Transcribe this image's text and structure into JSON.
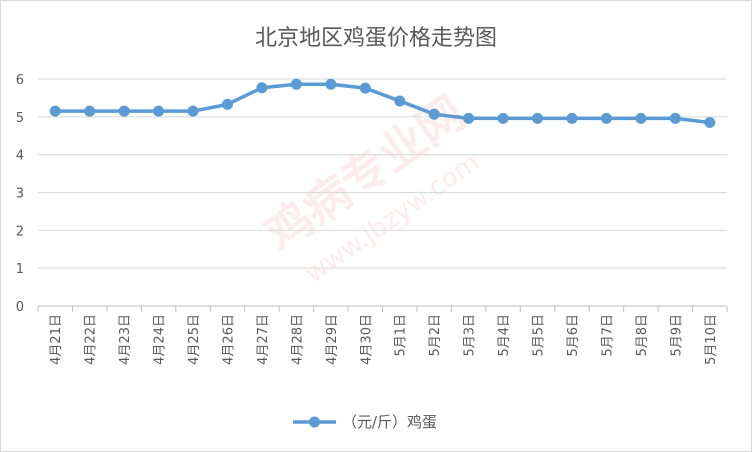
{
  "chart_data": {
    "type": "line",
    "title": "北京地区鸡蛋价格走势图",
    "categories": [
      "4月21日",
      "4月22日",
      "4月23日",
      "4月24日",
      "4月25日",
      "4月26日",
      "4月27日",
      "4月28日",
      "4月29日",
      "4月30日",
      "5月1日",
      "5月2日",
      "5月3日",
      "5月4日",
      "5月5日",
      "5月6日",
      "5月7日",
      "5月8日",
      "5月9日",
      "5月10日"
    ],
    "series": [
      {
        "name": "（元/斤）鸡蛋",
        "values": [
          5.15,
          5.15,
          5.15,
          5.15,
          5.15,
          5.33,
          5.77,
          5.86,
          5.86,
          5.76,
          5.42,
          5.07,
          4.96,
          4.96,
          4.96,
          4.96,
          4.96,
          4.96,
          4.96,
          4.85
        ],
        "color": "#5b9bd5"
      }
    ],
    "ylim": [
      0,
      6
    ],
    "yticks": [
      0,
      1,
      2,
      3,
      4,
      5,
      6
    ],
    "grid": true,
    "legend": "bottom",
    "xlabel": "",
    "ylabel": ""
  },
  "watermark": {
    "main": "鸡病专业网",
    "url": "www.jbzyw.com"
  }
}
